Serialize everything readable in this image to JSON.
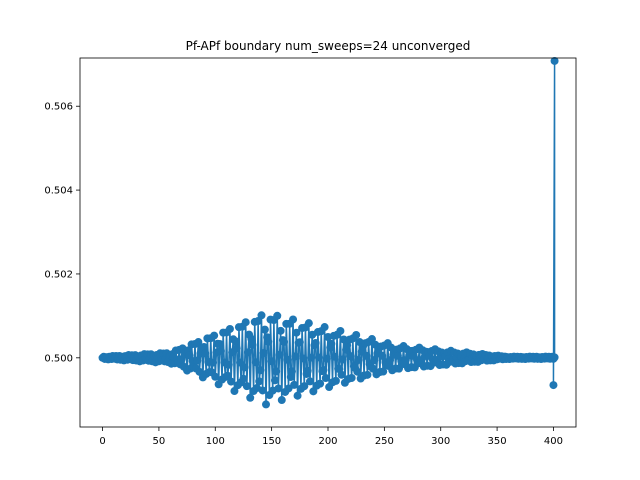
{
  "chart_data": {
    "type": "line",
    "title": "Pf-APf boundary num_sweeps=24 unconverged",
    "xlabel": "",
    "ylabel": "",
    "xlim": [
      -20,
      420
    ],
    "ylim": [
      0.49835,
      0.50715
    ],
    "xticks": [
      0,
      50,
      100,
      150,
      200,
      250,
      300,
      350,
      400
    ],
    "yticks": [
      0.5,
      0.502,
      0.504,
      0.506
    ],
    "ytick_labels": [
      "0.500",
      "0.502",
      "0.504",
      "0.506"
    ],
    "grid": false,
    "legend": "none",
    "marker": "circle",
    "color": "#1f77b4",
    "series": [
      {
        "envelope_description": "oscillating values centered at 0.5000; amplitude grows to about +-0.0011 near x=145 and decays after x=260",
        "x_start": 0,
        "x_step": 1,
        "x_end_sampled": 400,
        "end_points": [
          {
            "x": 400,
            "y": 0.49935
          },
          {
            "x": 401,
            "y": 0.50708
          },
          {
            "x": 401,
            "y": 0.50001
          }
        ]
      }
    ]
  }
}
